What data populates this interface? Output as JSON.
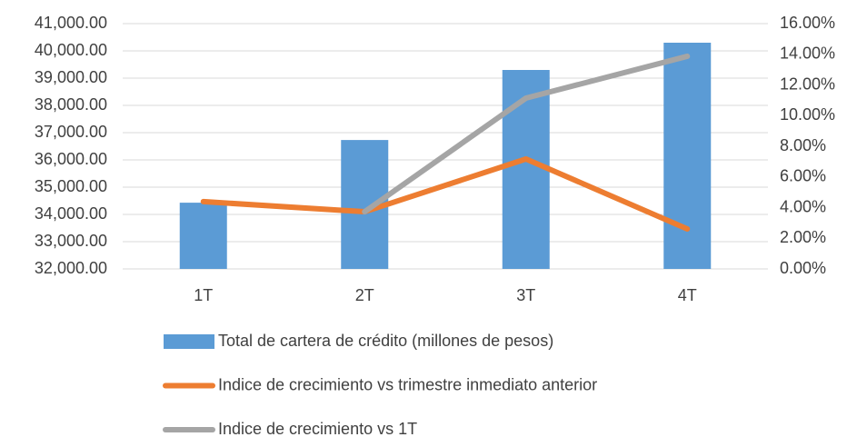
{
  "chart_data": {
    "type": "bar-line",
    "categories": [
      "1T",
      "2T",
      "3T",
      "4T"
    ],
    "series": [
      {
        "name": "Total de cartera de crédito (millones de pesos)",
        "type": "bar",
        "color": "#5b9bd5",
        "values": [
          34430,
          36730,
          39300,
          40300
        ]
      },
      {
        "name": "Indice de crecimiento vs trimestre inmediato anterior",
        "type": "line",
        "axis": "y2",
        "color": "#ed7d31",
        "values": [
          4.39,
          3.73,
          7.17,
          2.61
        ]
      },
      {
        "name": "Indice de crecimiento vs 1T",
        "type": "line",
        "axis": "y2",
        "color": "#a5a5a5",
        "values": [
          null,
          3.73,
          11.14,
          13.87
        ]
      }
    ],
    "ylim": [
      32000,
      41000
    ],
    "yticks": [
      {
        "value": 32000,
        "label": "32,000.00"
      },
      {
        "value": 33000,
        "label": "33,000.00"
      },
      {
        "value": 34000,
        "label": "34,000.00"
      },
      {
        "value": 35000,
        "label": "35,000.00"
      },
      {
        "value": 36000,
        "label": "36,000.00"
      },
      {
        "value": 37000,
        "label": "37,000.00"
      },
      {
        "value": 38000,
        "label": "38,000.00"
      },
      {
        "value": 39000,
        "label": "39,000.00"
      },
      {
        "value": 40000,
        "label": "40,000.00"
      },
      {
        "value": 41000,
        "label": "41,000.00"
      }
    ],
    "y2lim": [
      0,
      16
    ],
    "y2ticks": [
      {
        "value": 0,
        "label": "0.00%"
      },
      {
        "value": 2,
        "label": "2.00%"
      },
      {
        "value": 4,
        "label": "4.00%"
      },
      {
        "value": 6,
        "label": "6.00%"
      },
      {
        "value": 8,
        "label": "8.00%"
      },
      {
        "value": 10,
        "label": "10.00%"
      },
      {
        "value": 12,
        "label": "12.00%"
      },
      {
        "value": 14,
        "label": "14.00%"
      },
      {
        "value": 16,
        "label": "16.00%"
      }
    ],
    "grid": true,
    "legend": "bottom"
  }
}
